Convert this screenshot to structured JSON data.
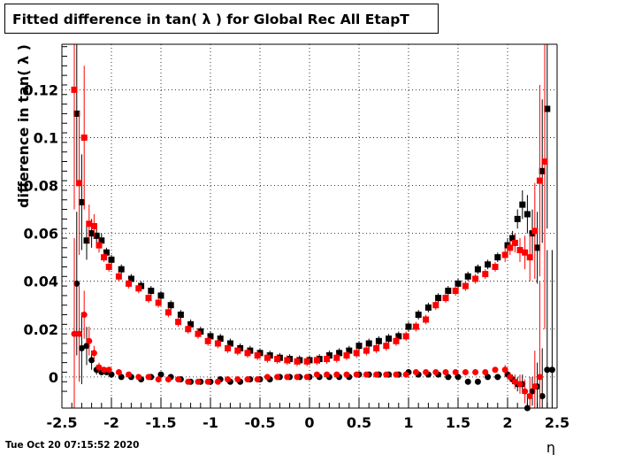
{
  "title": "Fitted difference in tan( λ ) for Global Rec All EtapT",
  "datestamp": "Tue Oct 20 07:15:52 2020",
  "chart_data": {
    "type": "scatter",
    "xlabel": "η",
    "ylabel": "difference in tan( λ )",
    "xlim": [
      -2.5,
      2.5
    ],
    "ylim": [
      -0.013,
      0.139
    ],
    "xticks": [
      "-2.5",
      "-2",
      "-1.5",
      "-1",
      "-0.5",
      "0",
      "0.5",
      "1",
      "1.5",
      "2",
      "2.5"
    ],
    "yticks": [
      "0",
      "0.02",
      "0.04",
      "0.06",
      "0.08",
      "0.1",
      "0.12"
    ],
    "grid": true,
    "colors": {
      "black": "#000000",
      "red": "#ff0000"
    },
    "series": [
      {
        "marker": "square",
        "color": "#000000",
        "x": [
          -2.35,
          -2.3,
          -2.25,
          -2.2,
          -2.15,
          -2.1,
          -2.05,
          -2.0,
          -1.9,
          -1.8,
          -1.7,
          -1.6,
          -1.5,
          -1.4,
          -1.3,
          -1.2,
          -1.1,
          -1.0,
          -0.9,
          -0.8,
          -0.7,
          -0.6,
          -0.5,
          -0.4,
          -0.3,
          -0.2,
          -0.1,
          0.0,
          0.1,
          0.2,
          0.3,
          0.4,
          0.5,
          0.6,
          0.7,
          0.8,
          0.9,
          1.0,
          1.1,
          1.2,
          1.3,
          1.4,
          1.5,
          1.6,
          1.7,
          1.8,
          1.9,
          2.0,
          2.05,
          2.1,
          2.15,
          2.2,
          2.25,
          2.3,
          2.35,
          2.4
        ],
        "y": [
          0.11,
          0.073,
          0.057,
          0.06,
          0.059,
          0.057,
          0.052,
          0.049,
          0.045,
          0.041,
          0.038,
          0.036,
          0.034,
          0.03,
          0.026,
          0.022,
          0.019,
          0.017,
          0.016,
          0.014,
          0.012,
          0.011,
          0.01,
          0.009,
          0.008,
          0.0075,
          0.007,
          0.007,
          0.0075,
          0.009,
          0.01,
          0.011,
          0.013,
          0.014,
          0.015,
          0.016,
          0.017,
          0.021,
          0.026,
          0.029,
          0.033,
          0.036,
          0.039,
          0.042,
          0.045,
          0.047,
          0.05,
          0.055,
          0.058,
          0.066,
          0.072,
          0.068,
          0.06,
          0.054,
          0.086,
          0.112
        ],
        "err": [
          0.03,
          0.02,
          0.008,
          0.006,
          0.004,
          0.003,
          0.002,
          0.002,
          0.002,
          0.002,
          0.002,
          0.002,
          0.002,
          0.002,
          0.002,
          0.002,
          0.002,
          0.002,
          0.002,
          0.002,
          0.002,
          0.002,
          0.002,
          0.002,
          0.002,
          0.002,
          0.002,
          0.002,
          0.002,
          0.002,
          0.002,
          0.002,
          0.002,
          0.002,
          0.002,
          0.002,
          0.002,
          0.002,
          0.002,
          0.002,
          0.002,
          0.002,
          0.002,
          0.002,
          0.002,
          0.002,
          0.002,
          0.003,
          0.003,
          0.004,
          0.006,
          0.008,
          0.01,
          0.015,
          0.03,
          0.05
        ]
      },
      {
        "marker": "square",
        "color": "#ff0000",
        "x": [
          -2.375,
          -2.325,
          -2.275,
          -2.225,
          -2.175,
          -2.125,
          -2.075,
          -2.025,
          -1.925,
          -1.825,
          -1.725,
          -1.625,
          -1.525,
          -1.425,
          -1.325,
          -1.225,
          -1.125,
          -1.025,
          -0.925,
          -0.825,
          -0.725,
          -0.625,
          -0.525,
          -0.425,
          -0.325,
          -0.225,
          -0.125,
          -0.025,
          0.075,
          0.175,
          0.275,
          0.375,
          0.475,
          0.575,
          0.675,
          0.775,
          0.875,
          0.975,
          1.075,
          1.175,
          1.275,
          1.375,
          1.475,
          1.575,
          1.675,
          1.775,
          1.875,
          1.975,
          2.025,
          2.075,
          2.125,
          2.175,
          2.225,
          2.275,
          2.325,
          2.375
        ],
        "y": [
          0.12,
          0.081,
          0.1,
          0.064,
          0.063,
          0.055,
          0.05,
          0.046,
          0.042,
          0.039,
          0.037,
          0.033,
          0.031,
          0.027,
          0.023,
          0.02,
          0.018,
          0.015,
          0.014,
          0.012,
          0.011,
          0.01,
          0.009,
          0.008,
          0.0075,
          0.007,
          0.0065,
          0.0065,
          0.007,
          0.0075,
          0.008,
          0.009,
          0.01,
          0.011,
          0.012,
          0.013,
          0.015,
          0.017,
          0.021,
          0.024,
          0.03,
          0.033,
          0.036,
          0.038,
          0.041,
          0.043,
          0.046,
          0.051,
          0.054,
          0.056,
          0.053,
          0.052,
          0.05,
          0.061,
          0.082,
          0.09
        ],
        "err": [
          0.05,
          0.03,
          0.03,
          0.008,
          0.005,
          0.003,
          0.002,
          0.002,
          0.002,
          0.002,
          0.002,
          0.002,
          0.002,
          0.002,
          0.002,
          0.002,
          0.002,
          0.002,
          0.002,
          0.002,
          0.002,
          0.002,
          0.002,
          0.002,
          0.002,
          0.002,
          0.002,
          0.002,
          0.002,
          0.002,
          0.002,
          0.002,
          0.002,
          0.002,
          0.002,
          0.002,
          0.002,
          0.002,
          0.002,
          0.002,
          0.002,
          0.002,
          0.002,
          0.002,
          0.002,
          0.002,
          0.002,
          0.003,
          0.003,
          0.004,
          0.005,
          0.007,
          0.01,
          0.02,
          0.04,
          0.07
        ]
      },
      {
        "marker": "circle",
        "color": "#000000",
        "x": [
          -2.35,
          -2.3,
          -2.25,
          -2.2,
          -2.15,
          -2.1,
          -2.05,
          -2.0,
          -1.9,
          -1.8,
          -1.7,
          -1.6,
          -1.5,
          -1.4,
          -1.3,
          -1.2,
          -1.1,
          -1.0,
          -0.9,
          -0.8,
          -0.7,
          -0.6,
          -0.5,
          -0.4,
          -0.3,
          -0.2,
          -0.1,
          0.0,
          0.1,
          0.2,
          0.3,
          0.4,
          0.5,
          0.6,
          0.7,
          0.8,
          0.9,
          1.0,
          1.1,
          1.2,
          1.3,
          1.4,
          1.5,
          1.6,
          1.7,
          1.8,
          1.9,
          2.0,
          2.05,
          2.1,
          2.15,
          2.2,
          2.25,
          2.3,
          2.35,
          2.4,
          2.45
        ],
        "y": [
          0.039,
          0.012,
          0.013,
          0.007,
          0.003,
          0.002,
          0.002,
          0.001,
          0.0,
          0.0,
          -0.001,
          0.0,
          0.001,
          0.0,
          -0.001,
          -0.002,
          -0.002,
          -0.002,
          -0.001,
          -0.002,
          -0.002,
          -0.001,
          -0.001,
          -0.001,
          0.0,
          0.0,
          0.0,
          0.0,
          0.0,
          0.0,
          0.0,
          0.0,
          0.001,
          0.001,
          0.001,
          0.001,
          0.001,
          0.002,
          0.001,
          0.001,
          0.001,
          0.0,
          0.0,
          -0.002,
          -0.002,
          0.0,
          0.0,
          0.001,
          -0.001,
          -0.003,
          -0.003,
          -0.013,
          -0.006,
          -0.004,
          -0.008,
          0.003,
          0.003
        ],
        "err": [
          0.03,
          0.015,
          0.008,
          0.004,
          0.002,
          0.001,
          0.001,
          0.001,
          0.001,
          0.001,
          0.001,
          0.001,
          0.001,
          0.001,
          0.001,
          0.001,
          0.001,
          0.001,
          0.001,
          0.001,
          0.001,
          0.001,
          0.001,
          0.001,
          0.001,
          0.001,
          0.001,
          0.001,
          0.001,
          0.001,
          0.001,
          0.001,
          0.001,
          0.001,
          0.001,
          0.001,
          0.001,
          0.001,
          0.001,
          0.001,
          0.001,
          0.001,
          0.001,
          0.001,
          0.001,
          0.001,
          0.001,
          0.002,
          0.002,
          0.003,
          0.004,
          0.006,
          0.006,
          0.01,
          0.02,
          0.05,
          0.05
        ]
      },
      {
        "marker": "circle",
        "color": "#ff0000",
        "x": [
          -2.375,
          -2.325,
          -2.275,
          -2.225,
          -2.175,
          -2.125,
          -2.075,
          -2.025,
          -1.925,
          -1.825,
          -1.725,
          -1.625,
          -1.525,
          -1.425,
          -1.325,
          -1.225,
          -1.125,
          -1.025,
          -0.925,
          -0.825,
          -0.725,
          -0.625,
          -0.525,
          -0.425,
          -0.325,
          -0.225,
          -0.125,
          -0.025,
          0.075,
          0.175,
          0.275,
          0.375,
          0.475,
          0.575,
          0.675,
          0.775,
          0.875,
          0.975,
          1.075,
          1.175,
          1.275,
          1.375,
          1.475,
          1.575,
          1.675,
          1.775,
          1.875,
          1.975,
          2.025,
          2.075,
          2.125,
          2.175,
          2.225,
          2.275,
          2.325
        ],
        "y": [
          0.018,
          0.018,
          0.026,
          0.015,
          0.01,
          0.004,
          0.003,
          0.003,
          0.002,
          0.001,
          0.0,
          0.0,
          -0.001,
          -0.001,
          -0.001,
          -0.002,
          -0.002,
          -0.002,
          -0.002,
          -0.001,
          -0.001,
          -0.001,
          -0.001,
          0.0,
          0.0,
          0.0,
          0.0,
          0.0,
          0.001,
          0.001,
          0.001,
          0.001,
          0.001,
          0.001,
          0.001,
          0.001,
          0.001,
          0.001,
          0.002,
          0.002,
          0.002,
          0.002,
          0.002,
          0.002,
          0.002,
          0.002,
          0.003,
          0.003,
          0.0,
          -0.002,
          -0.003,
          -0.006,
          -0.008,
          -0.004,
          0.0
        ],
        "err": [
          0.04,
          0.02,
          0.01,
          0.006,
          0.003,
          0.002,
          0.001,
          0.001,
          0.001,
          0.001,
          0.001,
          0.001,
          0.001,
          0.001,
          0.001,
          0.001,
          0.001,
          0.001,
          0.001,
          0.001,
          0.001,
          0.001,
          0.001,
          0.001,
          0.001,
          0.001,
          0.001,
          0.001,
          0.001,
          0.001,
          0.001,
          0.001,
          0.001,
          0.001,
          0.001,
          0.001,
          0.001,
          0.001,
          0.001,
          0.001,
          0.001,
          0.001,
          0.001,
          0.001,
          0.001,
          0.001,
          0.001,
          0.002,
          0.002,
          0.003,
          0.004,
          0.005,
          0.008,
          0.015,
          0.04
        ]
      }
    ]
  }
}
